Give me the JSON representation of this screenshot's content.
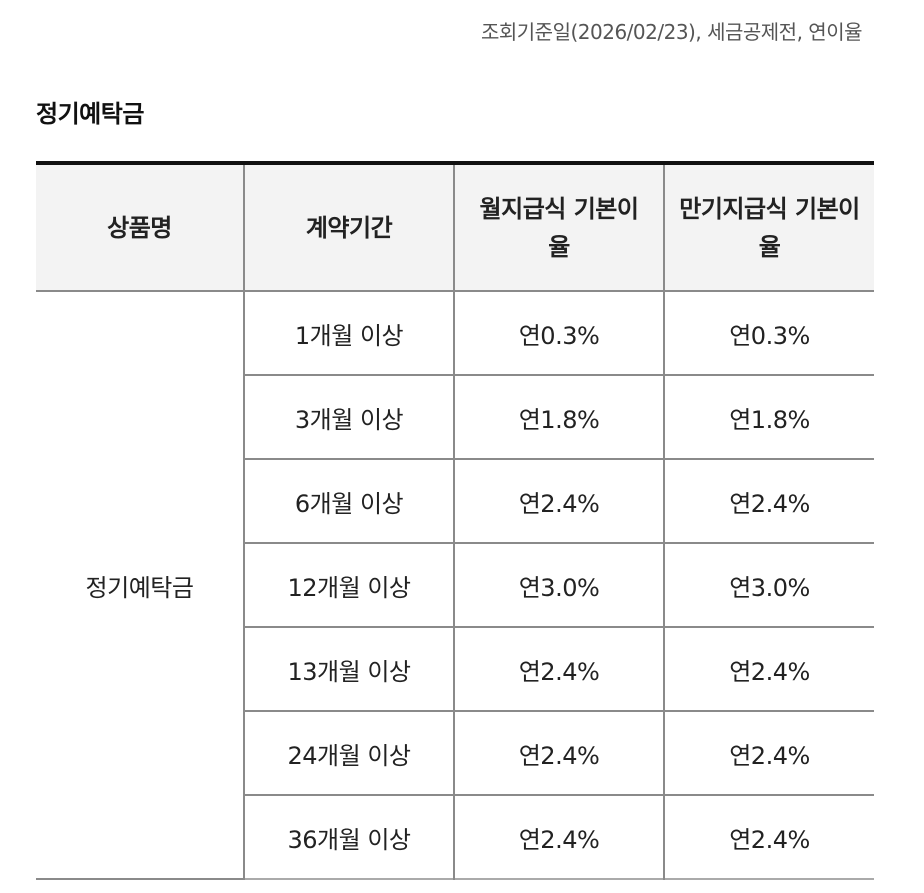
{
  "reference_note": "조회기준일(2026/02/23), 세금공제전, 연이율",
  "section_title": "정기예탁금",
  "table": {
    "headers": {
      "product": "상품명",
      "term": "계약기간",
      "monthly_rate": "월지급식 기본이율",
      "maturity_rate": "만기지급식 기본이율"
    },
    "product_name": "정기예탁금",
    "rows": [
      {
        "term": "1개월 이상",
        "monthly": "연0.3%",
        "maturity": "연0.3%"
      },
      {
        "term": "3개월 이상",
        "monthly": "연1.8%",
        "maturity": "연1.8%"
      },
      {
        "term": "6개월 이상",
        "monthly": "연2.4%",
        "maturity": "연2.4%"
      },
      {
        "term": "12개월 이상",
        "monthly": "연3.0%",
        "maturity": "연3.0%"
      },
      {
        "term": "13개월 이상",
        "monthly": "연2.4%",
        "maturity": "연2.4%"
      },
      {
        "term": "24개월 이상",
        "monthly": "연2.4%",
        "maturity": "연2.4%"
      },
      {
        "term": "36개월 이상",
        "monthly": "연2.4%",
        "maturity": "연2.4%"
      }
    ]
  }
}
